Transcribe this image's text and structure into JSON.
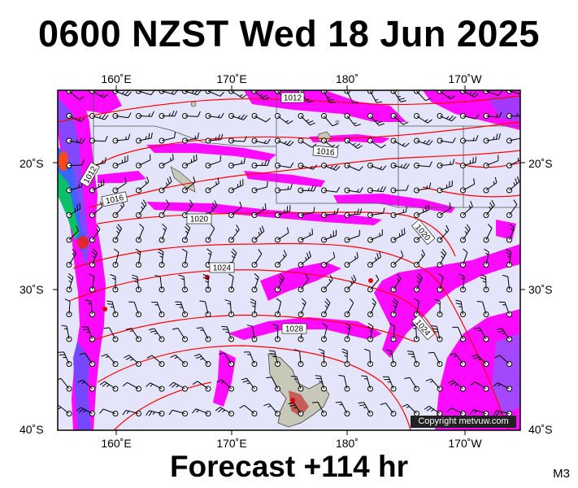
{
  "header": {
    "title": "0600 NZST Wed 18 Jun 2025"
  },
  "footer": {
    "forecast": "Forecast +114 hr",
    "model": "M3"
  },
  "map": {
    "lon_labels": [
      "160˚E",
      "170˚E",
      "180˚",
      "170˚W"
    ],
    "lat_labels": [
      "20˚S",
      "30˚S",
      "40˚S"
    ],
    "isobar_labels": [
      "1012",
      "1012",
      "1016",
      "1016",
      "1020",
      "1020",
      "1024",
      "1028",
      "1024"
    ],
    "copyright": "Copyright metvuw.com",
    "colors": {
      "ocean": "#e4e4fa",
      "isobar": "#ff0000",
      "rain_light": "#ff00ff",
      "rain_moderate": "#c060ff",
      "rain_heavy": "#4050ff",
      "rain_intense": "#00c040",
      "rain_extreme": "#ff3000",
      "land": "#d8d8c8"
    }
  }
}
